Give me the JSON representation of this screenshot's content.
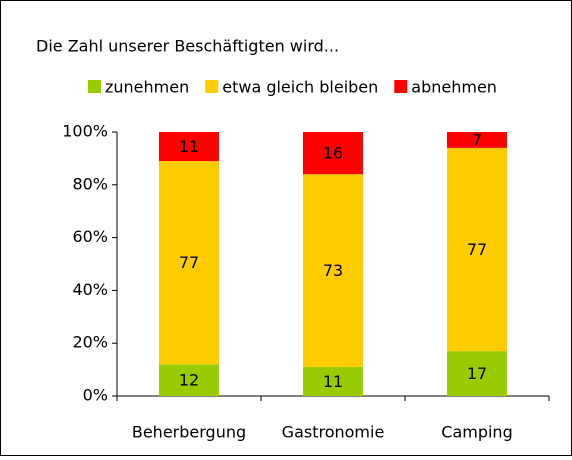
{
  "chart_data": {
    "type": "stacked_bar",
    "title": "Die Zahl unserer Beschäftigten wird...",
    "categories": [
      "Beherbergung",
      "Gastronomie",
      "Camping"
    ],
    "series": [
      {
        "name": "zunehmen",
        "color": "#99cc00",
        "values": [
          12,
          11,
          17
        ]
      },
      {
        "name": "etwa gleich bleiben",
        "color": "#ffcc00",
        "values": [
          77,
          73,
          77
        ]
      },
      {
        "name": "abnehmen",
        "color": "#ff0000",
        "values": [
          11,
          16,
          7
        ]
      }
    ],
    "ylim": [
      0,
      100
    ],
    "yticks": [
      {
        "value": 0,
        "label": "0%"
      },
      {
        "value": 20,
        "label": "20%"
      },
      {
        "value": 40,
        "label": "40%"
      },
      {
        "value": 60,
        "label": "60%"
      },
      {
        "value": 80,
        "label": "80%"
      },
      {
        "value": 100,
        "label": "100%"
      }
    ],
    "legend": "top"
  }
}
